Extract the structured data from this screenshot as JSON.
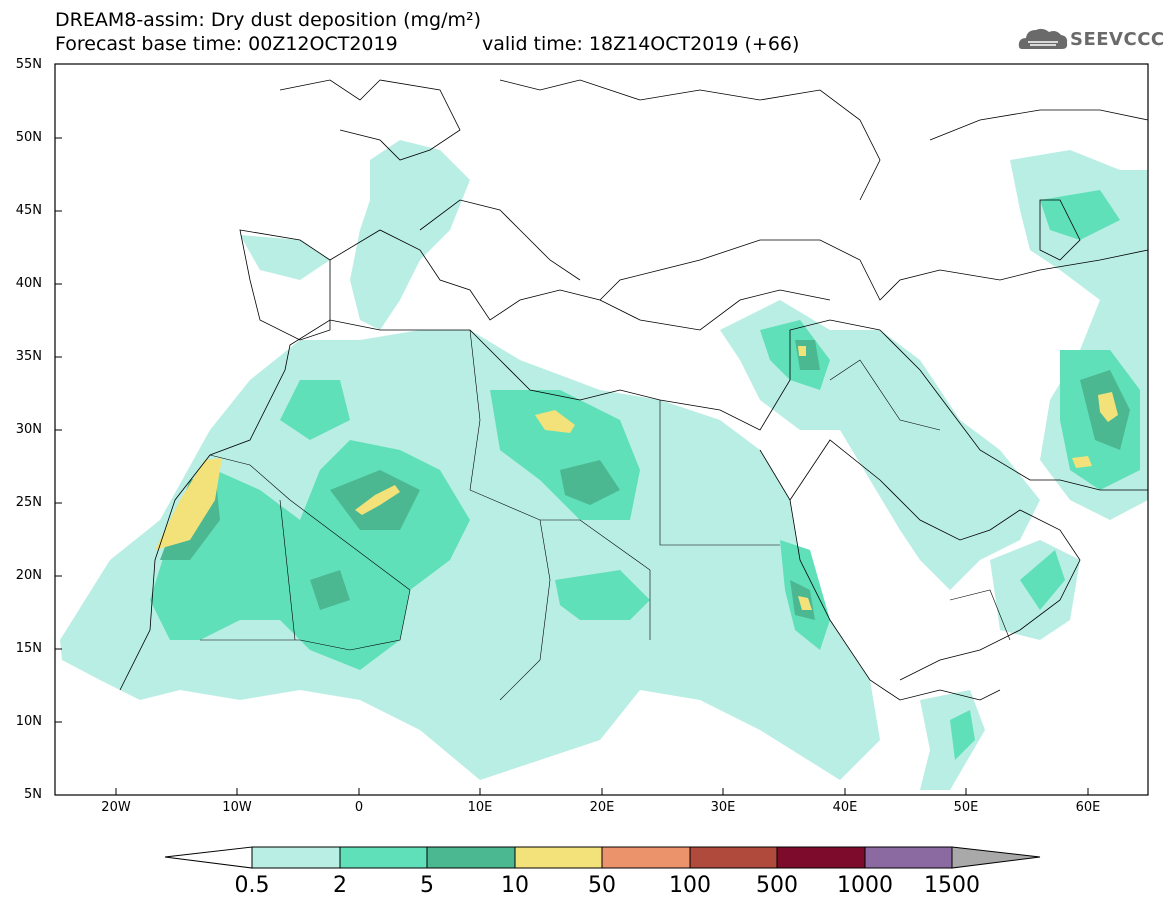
{
  "header": {
    "line1": "DREAM8-assim: Dry dust deposition (mg/m²)",
    "line2": "Forecast base time: 00Z12OCT2019",
    "valid": "valid time: 18Z14OCT2019 (+66)"
  },
  "logo": {
    "text": "SEEVCCC",
    "icon": "cloud-logo-icon"
  },
  "axes": {
    "lat_labels": [
      "55N",
      "50N",
      "45N",
      "40N",
      "35N",
      "30N",
      "25N",
      "20N",
      "15N",
      "10N",
      "5N"
    ],
    "lon_labels": [
      "20W",
      "10W",
      "0",
      "10E",
      "20E",
      "30E",
      "40E",
      "50E",
      "60E"
    ]
  },
  "colorbar": {
    "labels": [
      "0.5",
      "2",
      "5",
      "10",
      "50",
      "100",
      "500",
      "1000",
      "1500"
    ],
    "colors": [
      "#ffffff",
      "#b8eee4",
      "#5fe0b8",
      "#4bb892",
      "#f3e27a",
      "#eb936b",
      "#b04a3c",
      "#7d0b2c",
      "#8a6aa0",
      "#a9a9a9"
    ]
  }
}
